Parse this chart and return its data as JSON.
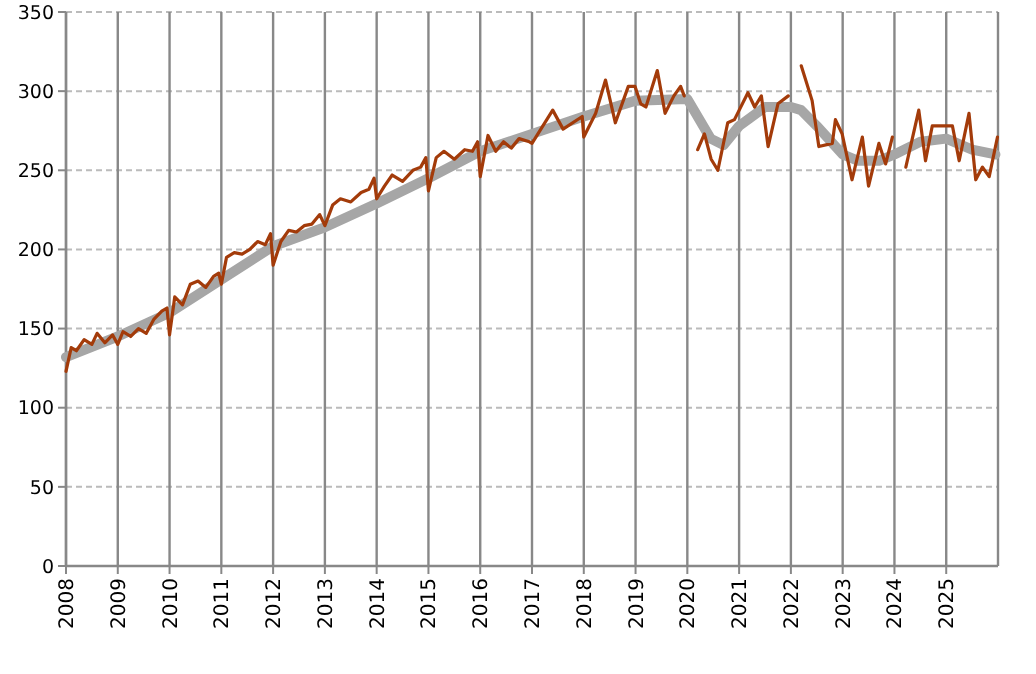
{
  "chart_data": {
    "type": "line",
    "xlim": [
      2008,
      2026
    ],
    "xticks": [
      2008,
      2009,
      2010,
      2011,
      2012,
      2013,
      2014,
      2015,
      2016,
      2017,
      2018,
      2019,
      2020,
      2021,
      2022,
      2023,
      2024,
      2025
    ],
    "ylim": [
      0,
      350
    ],
    "yticks": [
      0,
      50,
      100,
      150,
      200,
      250,
      300,
      350
    ],
    "grid": true,
    "series": [
      {
        "color": "#a6a6a6",
        "x": [
          2008,
          2009,
          2010,
          2011,
          2012,
          2013,
          2014,
          2015,
          2016,
          2017,
          2018,
          2019,
          2020,
          2020.45,
          2020.7,
          2021,
          2021.5,
          2022,
          2022.2,
          2022.5,
          2023,
          2023.3,
          2023.7,
          2024,
          2024.5,
          2025,
          2025.5,
          2025.95
        ],
        "values": [
          132,
          145,
          160,
          181,
          202,
          214,
          229,
          245,
          262,
          273,
          284,
          294,
          295,
          270,
          266,
          278,
          290,
          290,
          288,
          278,
          260,
          256,
          256,
          260,
          268,
          270,
          263,
          260
        ]
      },
      {
        "color": "#a33b0a",
        "x": [
          2008,
          2008.1,
          2008.2,
          2008.35,
          2008.5,
          2008.6,
          2008.75,
          2008.9,
          2009,
          2009.1,
          2009.25,
          2009.4,
          2009.55,
          2009.7,
          2009.85,
          2009.95,
          2010,
          2010.1,
          2010.25,
          2010.4,
          2010.55,
          2010.7,
          2010.85,
          2010.95,
          2011,
          2011.1,
          2011.25,
          2011.4,
          2011.55,
          2011.7,
          2011.85,
          2011.95,
          2012,
          2012.15,
          2012.3,
          2012.45,
          2012.6,
          2012.75,
          2012.9,
          2013,
          2013.15,
          2013.3,
          2013.5,
          2013.7,
          2013.85,
          2013.95,
          2014,
          2014.15,
          2014.3,
          2014.5,
          2014.7,
          2014.85,
          2014.95,
          2015,
          2015.15,
          2015.3,
          2015.5,
          2015.7,
          2015.85,
          2015.95,
          2016,
          2016.15,
          2016.3,
          2016.45,
          2016.6,
          2016.75,
          2016.95,
          2017,
          2017.4,
          2017.6,
          2017.97,
          2018,
          2018.23,
          2018.42,
          2018.61,
          2018.86,
          2018.99,
          2019.1,
          2019.2,
          2019.42,
          2019.57,
          2019.74,
          2019.87,
          2019.94,
          2020.05,
          2020.2,
          2020.33,
          2020.46,
          2020.59,
          2020.78,
          2020.91,
          2021.17,
          2021.3,
          2021.43,
          2021.56,
          2021.75,
          2021.95,
          2022.05,
          2022.2,
          2022.41,
          2022.54,
          2022.8,
          2022.86,
          2022.99,
          2023.18,
          2023.38,
          2023.5,
          2023.7,
          2023.83,
          2023.96,
          2024.05,
          2024.22,
          2024.47,
          2024.6,
          2024.73,
          2024.92,
          2025.12,
          2025.25,
          2025.44,
          2025.57,
          2025.7,
          2025.83,
          2025.99
        ],
        "values": [
          123,
          138,
          136,
          143,
          140,
          147,
          141,
          146,
          140,
          148,
          145,
          150,
          147,
          156,
          161,
          163,
          146,
          170,
          165,
          178,
          180,
          176,
          183,
          185,
          178,
          195,
          198,
          197,
          200,
          205,
          203,
          210,
          190,
          205,
          212,
          211,
          215,
          216,
          222,
          215,
          228,
          232,
          230,
          236,
          238,
          245,
          232,
          240,
          247,
          243,
          250,
          252,
          258,
          237,
          258,
          262,
          257,
          263,
          262,
          268,
          246,
          272,
          262,
          268,
          264,
          270,
          268,
          267,
          288,
          276,
          284,
          271,
          286,
          307,
          280,
          303,
          303,
          292,
          290,
          313,
          286,
          297,
          303,
          297,
          null,
          263,
          273,
          257,
          250,
          280,
          282,
          299,
          290,
          297,
          265,
          292,
          297,
          null,
          316,
          294,
          265,
          267,
          282,
          273,
          244,
          271,
          240,
          267,
          254,
          271,
          null,
          252,
          288,
          256,
          278,
          278,
          278,
          256,
          286,
          244,
          252,
          246,
          271
        ]
      }
    ]
  }
}
